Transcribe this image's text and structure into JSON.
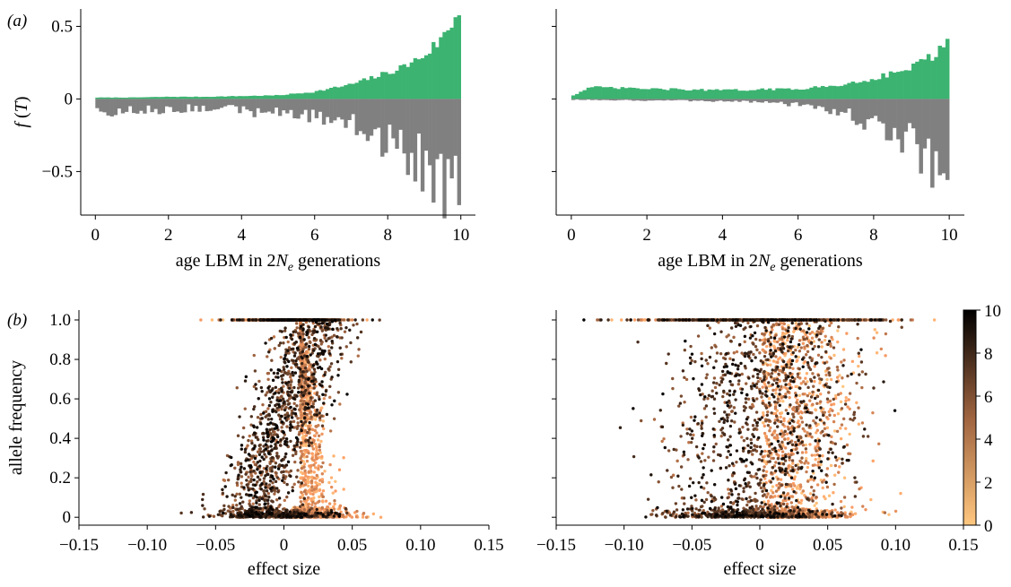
{
  "panel_labels": {
    "a": "(a)",
    "b": "(b)"
  },
  "colors": {
    "positive_bars": "#3cb371",
    "negative_bars": "#808080",
    "colormap": "copper_r"
  },
  "chart_data": [
    {
      "id": "a-left",
      "type": "bar",
      "xlabel_parts": {
        "pre": "age LBM in 2",
        "N": "N",
        "sub": "e",
        "post": " generations"
      },
      "ylabel_parts": {
        "f": "f",
        "open": " (",
        "T": "T",
        "close": ")"
      },
      "xlim": [
        -0.4,
        10.4
      ],
      "ylim": [
        -0.8,
        0.62
      ],
      "xticks": [
        0,
        2,
        4,
        6,
        8,
        10
      ],
      "xtick_labels": [
        "0",
        "2",
        "4",
        "6",
        "8",
        "10"
      ],
      "yticks": [
        0.5,
        0,
        -0.5
      ],
      "ytick_labels": [
        "0.5",
        "0",
        "−0.5"
      ],
      "bin_width": 0.1,
      "series": [
        {
          "name": "",
          "color": "#3cb371",
          "sign": "positive",
          "keypoints": [
            [
              0,
              0.01
            ],
            [
              1,
              0.01
            ],
            [
              2,
              0.015
            ],
            [
              3,
              0.015
            ],
            [
              4,
              0.02
            ],
            [
              5,
              0.025
            ],
            [
              6,
              0.05
            ],
            [
              7,
              0.1
            ],
            [
              8,
              0.18
            ],
            [
              8.5,
              0.23
            ],
            [
              9,
              0.3
            ],
            [
              9.5,
              0.42
            ],
            [
              10,
              0.62
            ]
          ]
        },
        {
          "name": "",
          "color": "#808080",
          "sign": "negative",
          "keypoints": [
            [
              0,
              -0.1
            ],
            [
              1,
              -0.08
            ],
            [
              2,
              -0.07
            ],
            [
              3,
              -0.06
            ],
            [
              4,
              -0.08
            ],
            [
              5,
              -0.1
            ],
            [
              6,
              -0.12
            ],
            [
              7,
              -0.18
            ],
            [
              8,
              -0.3
            ],
            [
              9,
              -0.45
            ],
            [
              9.6,
              -0.6
            ],
            [
              10,
              -0.72
            ]
          ]
        }
      ]
    },
    {
      "id": "a-right",
      "type": "bar",
      "xlabel_parts": {
        "pre": "age LBM in 2",
        "N": "N",
        "sub": "e",
        "post": " generations"
      },
      "xlim": [
        -0.4,
        10.4
      ],
      "ylim": [
        -0.8,
        0.62
      ],
      "xticks": [
        0,
        2,
        4,
        6,
        8,
        10
      ],
      "xtick_labels": [
        "0",
        "2",
        "4",
        "6",
        "8",
        "10"
      ],
      "bin_width": 0.1,
      "series": [
        {
          "name": "",
          "color": "#3cb371",
          "sign": "positive",
          "keypoints": [
            [
              0,
              0.02
            ],
            [
              0.5,
              0.08
            ],
            [
              2,
              0.07
            ],
            [
              4,
              0.06
            ],
            [
              6,
              0.07
            ],
            [
              7,
              0.09
            ],
            [
              8,
              0.14
            ],
            [
              9,
              0.22
            ],
            [
              9.5,
              0.29
            ],
            [
              10,
              0.38
            ]
          ]
        },
        {
          "name": "",
          "color": "#808080",
          "sign": "negative",
          "keypoints": [
            [
              0,
              -0.005
            ],
            [
              2,
              -0.01
            ],
            [
              4,
              -0.015
            ],
            [
              5,
              -0.02
            ],
            [
              6,
              -0.04
            ],
            [
              7,
              -0.08
            ],
            [
              8,
              -0.17
            ],
            [
              9,
              -0.3
            ],
            [
              9.5,
              -0.42
            ],
            [
              10,
              -0.56
            ]
          ]
        }
      ]
    },
    {
      "id": "b-left",
      "type": "scatter",
      "xlabel": "effect size",
      "ylabel": "allele frequency",
      "xlim": [
        -0.15,
        0.15
      ],
      "ylim": [
        -0.04,
        1.05
      ],
      "xticks": [
        -0.15,
        -0.1,
        -0.05,
        0,
        0.05,
        0.1,
        0.15
      ],
      "xtick_labels": [
        "−0.15",
        "−0.10",
        "−0.05",
        "0",
        "0.05",
        "0.10",
        "0.15"
      ],
      "yticks": [
        0,
        0.2,
        0.4,
        0.6,
        0.8,
        1.0
      ],
      "ytick_labels": [
        "0",
        "0.2",
        "0.4",
        "0.6",
        "0.8",
        "1.0"
      ],
      "color_by": "age",
      "seed": 11
    },
    {
      "id": "b-right",
      "type": "scatter",
      "xlabel": "effect size",
      "xlim": [
        -0.15,
        0.15
      ],
      "ylim": [
        -0.04,
        1.05
      ],
      "xticks": [
        -0.15,
        -0.1,
        -0.05,
        0,
        0.05,
        0.1,
        0.15
      ],
      "xtick_labels": [
        "−0.15",
        "−0.10",
        "−0.05",
        "0",
        "0.05",
        "0.10",
        "0.15"
      ],
      "color_by": "age",
      "seed": 29
    }
  ],
  "colorbar": {
    "range": [
      0,
      10
    ],
    "ticks": [
      0,
      2,
      4,
      6,
      8,
      10
    ],
    "tick_labels": [
      "0",
      "2",
      "4",
      "6",
      "8",
      "10"
    ]
  }
}
